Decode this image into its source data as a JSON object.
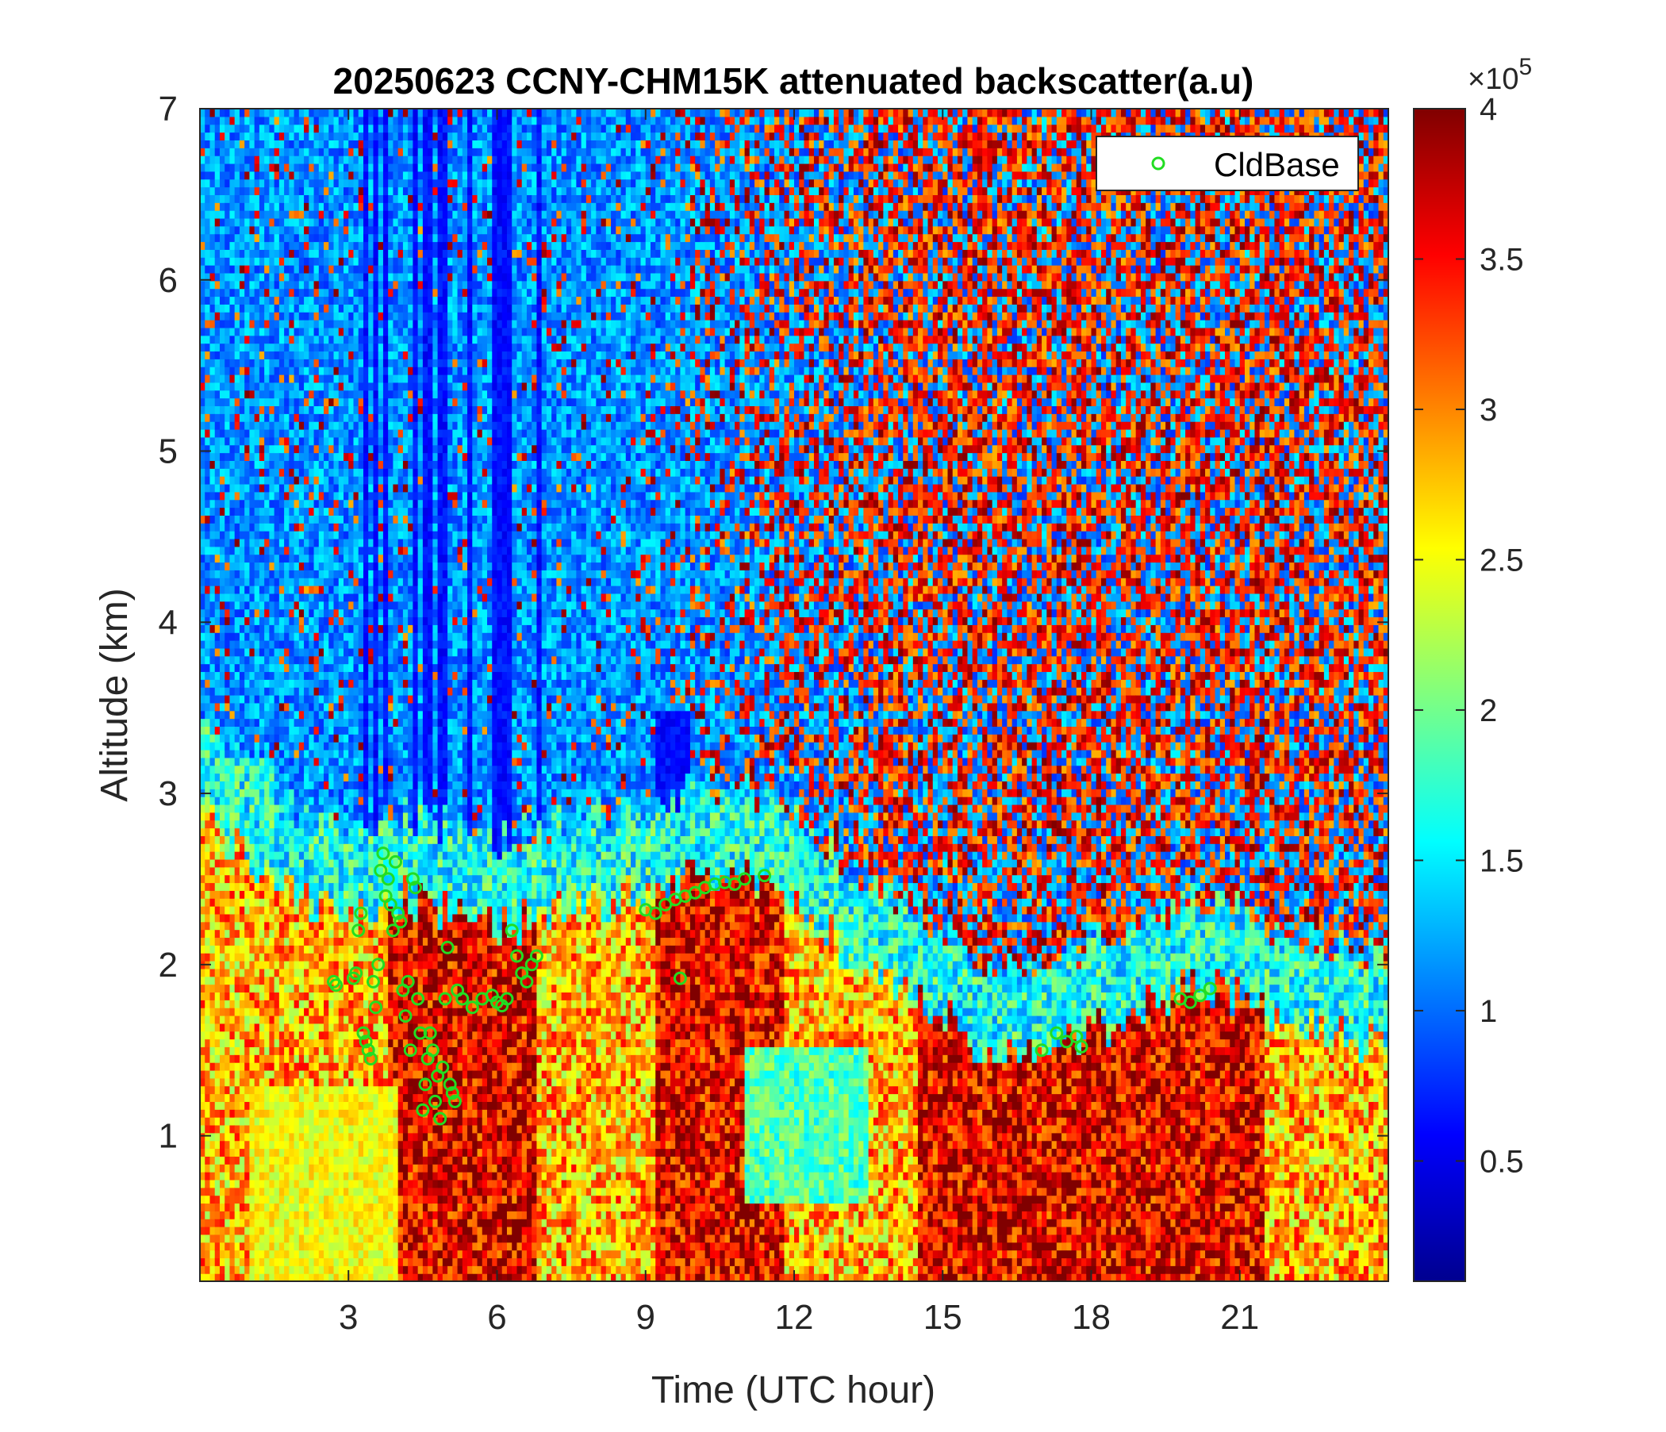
{
  "chart_data": {
    "type": "heatmap",
    "title": "20250623 CCNY-CHM15K attenuated backscatter(a.u)",
    "xlabel": "Time (UTC hour)",
    "ylabel": "Altitude (km)",
    "xlim": [
      0,
      24
    ],
    "ylim": [
      0.15,
      7
    ],
    "x_ticks": [
      3,
      6,
      9,
      12,
      15,
      18,
      21
    ],
    "y_ticks": [
      1,
      2,
      3,
      4,
      5,
      6,
      7
    ],
    "colorbar": {
      "colormap": "jet",
      "range": [
        0.1,
        4
      ],
      "ticks": [
        0.5,
        1,
        1.5,
        2,
        2.5,
        3,
        3.5,
        4
      ],
      "exponent_label": "×10",
      "exponent": "5"
    },
    "legend": {
      "placement": "top-right",
      "entries": [
        {
          "label": "CldBase",
          "marker": "circle",
          "color": "#22dd22"
        }
      ]
    },
    "series": [
      {
        "name": "CldBase",
        "style": "scatter",
        "color": "#22dd22",
        "x": [
          2.7,
          2.75,
          3.1,
          3.15,
          3.2,
          3.25,
          3.3,
          3.35,
          3.4,
          3.45,
          3.5,
          3.55,
          3.6,
          3.65,
          3.7,
          3.75,
          3.8,
          3.85,
          3.9,
          3.95,
          4.0,
          4.05,
          4.1,
          4.15,
          4.2,
          4.25,
          4.3,
          4.35,
          4.4,
          4.45,
          4.5,
          4.55,
          4.6,
          4.65,
          4.7,
          4.75,
          4.8,
          4.85,
          4.9,
          4.95,
          5.0,
          5.05,
          5.1,
          5.15,
          5.2,
          5.3,
          5.5,
          5.7,
          5.9,
          6.0,
          6.1,
          6.2,
          6.3,
          6.4,
          6.5,
          6.6,
          6.7,
          6.8,
          9.0,
          9.2,
          9.4,
          9.6,
          9.8,
          10.0,
          10.2,
          10.4,
          10.6,
          10.8,
          11.0,
          11.4,
          9.7,
          17.0,
          17.3,
          17.5,
          17.7,
          17.8,
          19.8,
          20.0,
          20.2,
          20.4
        ],
        "y": [
          1.9,
          1.88,
          1.92,
          1.95,
          2.2,
          2.3,
          1.6,
          1.55,
          1.5,
          1.45,
          1.9,
          1.75,
          2.0,
          2.55,
          2.65,
          2.4,
          2.5,
          2.35,
          2.2,
          2.6,
          2.3,
          2.25,
          1.85,
          1.7,
          1.9,
          1.5,
          2.5,
          2.45,
          1.8,
          1.6,
          1.15,
          1.3,
          1.45,
          1.6,
          1.5,
          1.2,
          1.35,
          1.1,
          1.4,
          1.8,
          2.1,
          1.3,
          1.25,
          1.2,
          1.85,
          1.8,
          1.75,
          1.8,
          1.82,
          1.78,
          1.76,
          1.8,
          2.2,
          2.05,
          1.95,
          1.9,
          2.0,
          2.05,
          2.32,
          2.3,
          2.35,
          2.38,
          2.4,
          2.42,
          2.45,
          2.47,
          2.48,
          2.47,
          2.5,
          2.52,
          1.92,
          1.5,
          1.6,
          1.55,
          1.58,
          1.52,
          1.8,
          1.78,
          1.82,
          1.86
        ]
      }
    ]
  }
}
